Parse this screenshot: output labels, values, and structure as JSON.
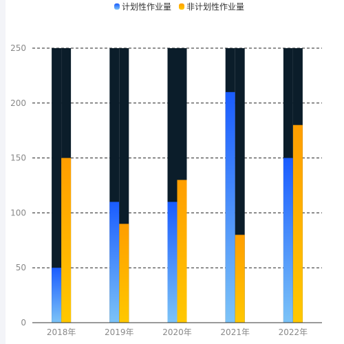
{
  "chart_data": {
    "type": "bar",
    "categories": [
      "2018年",
      "2019年",
      "2020年",
      "2021年",
      "2022年"
    ],
    "series": [
      {
        "name": "计划性作业量",
        "values": [
          50,
          110,
          110,
          210,
          150
        ],
        "color_top": "#1a5cff",
        "color_bottom": "#7cc3f7"
      },
      {
        "name": "非计划性作业量",
        "values": [
          150,
          90,
          130,
          80,
          180
        ],
        "color_top": "#ff9e00",
        "color_bottom": "#ffc800"
      }
    ],
    "background_bar_color": "#0b1d2a",
    "ylim": [
      0,
      250
    ],
    "yticks": [
      0,
      50,
      100,
      150,
      200,
      250
    ],
    "grid": true,
    "legend_position": "top-center"
  }
}
